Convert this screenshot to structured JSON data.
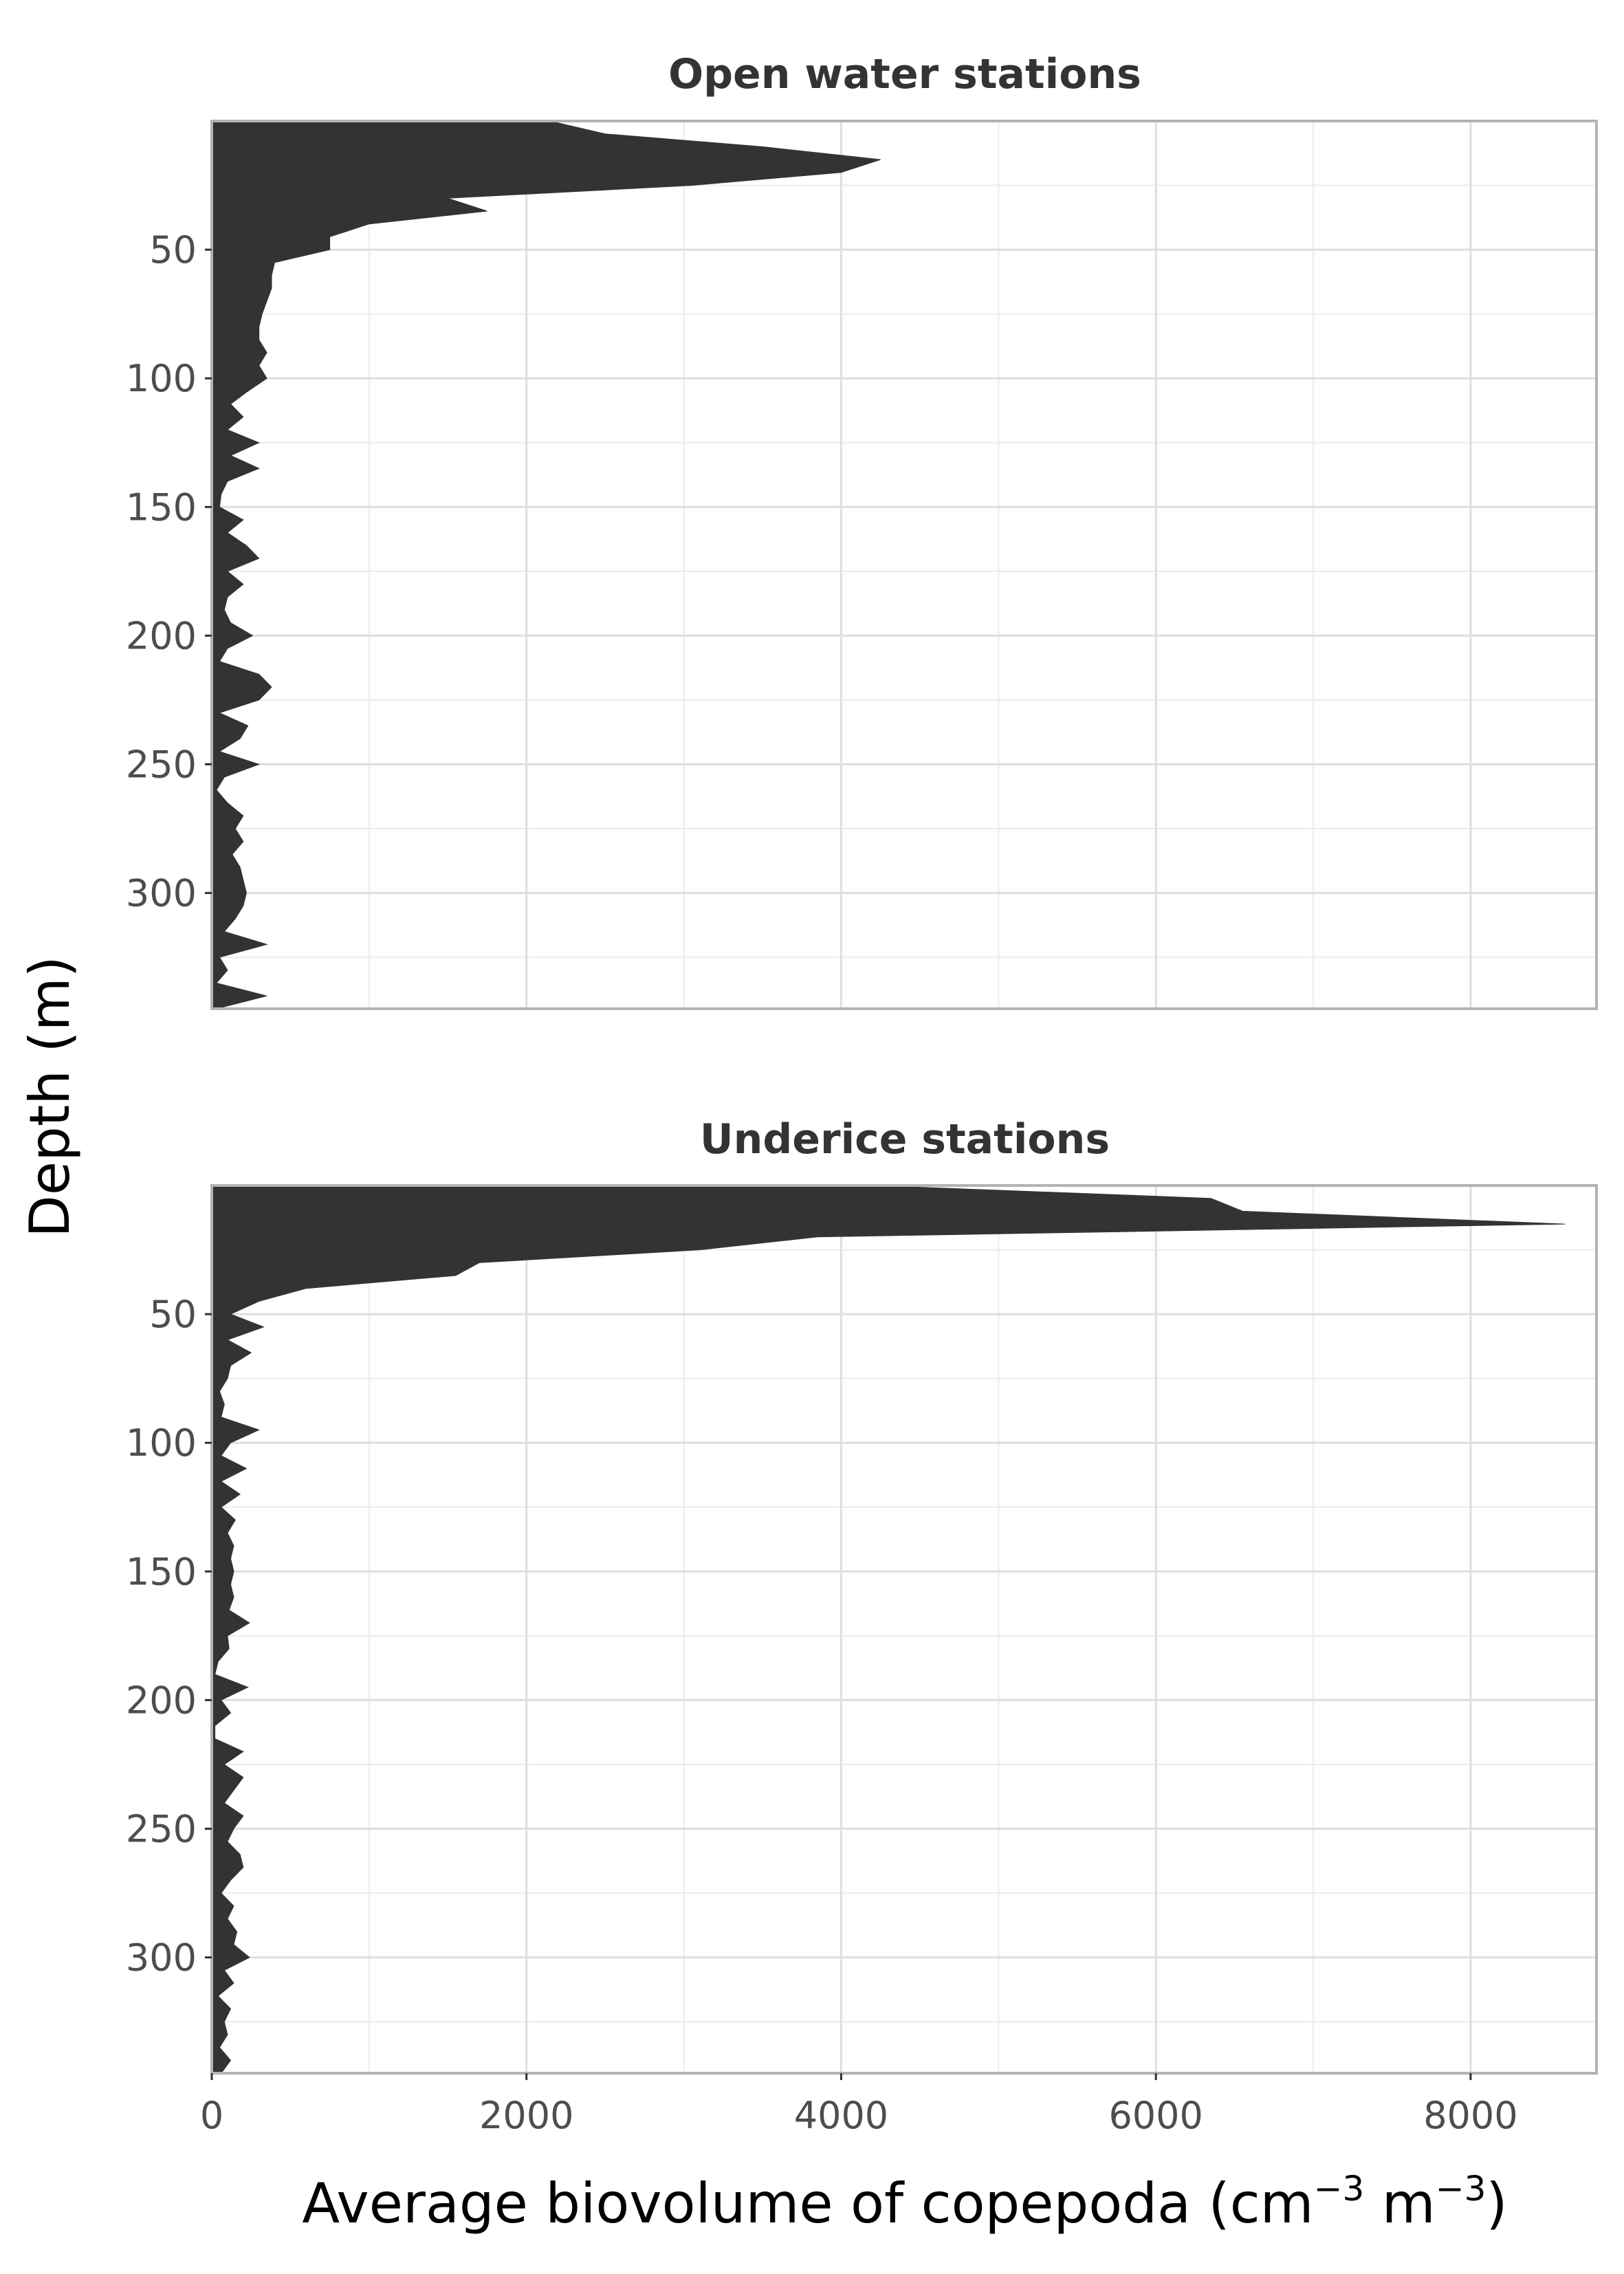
{
  "chart_data": [
    {
      "type": "area",
      "title": "Open water stations",
      "xlim": [
        0,
        8800
      ],
      "ylim": [
        0,
        345
      ],
      "y_reversed": true,
      "x_ticks": [
        0,
        2000,
        4000,
        6000,
        8000
      ],
      "y_ticks": [
        50,
        100,
        150,
        200,
        250,
        300
      ],
      "x_tick_labels_shown": false,
      "grid": true,
      "profile": {
        "depth": [
          0,
          5,
          10,
          15,
          20,
          25,
          30,
          35,
          40,
          45,
          50,
          55,
          60,
          65,
          70,
          75,
          80,
          85,
          90,
          95,
          100,
          105,
          110,
          115,
          120,
          125,
          130,
          135,
          140,
          145,
          150,
          155,
          160,
          165,
          170,
          175,
          180,
          185,
          190,
          195,
          200,
          205,
          210,
          215,
          220,
          225,
          230,
          235,
          240,
          245,
          250,
          255,
          260,
          265,
          270,
          275,
          280,
          285,
          290,
          295,
          300,
          305,
          310,
          315,
          320,
          325,
          330,
          335,
          340,
          345
        ],
        "biovolume": [
          2150,
          2500,
          3500,
          4250,
          4000,
          3050,
          1500,
          1750,
          1000,
          750,
          750,
          400,
          380,
          380,
          350,
          320,
          300,
          300,
          350,
          300,
          350,
          230,
          120,
          200,
          100,
          300,
          120,
          300,
          100,
          60,
          50,
          200,
          100,
          220,
          300,
          100,
          200,
          100,
          80,
          120,
          260,
          100,
          50,
          300,
          380,
          300,
          50,
          230,
          180,
          50,
          300,
          80,
          30,
          100,
          200,
          150,
          200,
          130,
          180,
          200,
          220,
          200,
          150,
          80,
          350,
          50,
          100,
          30,
          350,
          30
        ]
      }
    },
    {
      "type": "area",
      "title": "Underice stations",
      "xlabel": "Average biovolume of copepoda (cm⁻³ m⁻³)",
      "ylabel": "Depth (m)",
      "xlim": [
        0,
        8800
      ],
      "ylim": [
        0,
        345
      ],
      "y_reversed": true,
      "x_ticks": [
        0,
        2000,
        4000,
        6000,
        8000
      ],
      "y_ticks": [
        50,
        100,
        150,
        200,
        250,
        300
      ],
      "grid": true,
      "profile": {
        "depth": [
          0,
          5,
          10,
          15,
          20,
          25,
          30,
          35,
          40,
          45,
          50,
          55,
          60,
          65,
          70,
          75,
          80,
          85,
          90,
          95,
          100,
          105,
          110,
          115,
          120,
          125,
          130,
          135,
          140,
          145,
          150,
          155,
          160,
          165,
          170,
          175,
          180,
          185,
          190,
          195,
          200,
          205,
          210,
          215,
          220,
          225,
          230,
          235,
          240,
          245,
          250,
          255,
          260,
          265,
          270,
          275,
          280,
          285,
          290,
          295,
          300,
          305,
          310,
          315,
          320,
          325,
          330,
          335,
          340,
          345
        ],
        "biovolume": [
          4200,
          6350,
          6550,
          8600,
          3850,
          3100,
          1700,
          1550,
          600,
          300,
          120,
          330,
          100,
          250,
          120,
          100,
          50,
          80,
          60,
          300,
          120,
          60,
          220,
          60,
          180,
          60,
          150,
          100,
          140,
          120,
          140,
          120,
          140,
          110,
          240,
          100,
          110,
          40,
          20,
          230,
          60,
          120,
          20,
          20,
          200,
          80,
          200,
          140,
          80,
          200,
          140,
          100,
          180,
          200,
          120,
          60,
          140,
          100,
          160,
          140,
          240,
          80,
          140,
          40,
          120,
          80,
          100,
          50,
          120,
          60
        ]
      }
    }
  ],
  "labels": {
    "panel_top_title": "Open water stations",
    "panel_bottom_title": "Underice stations",
    "y_axis_title": "Depth (m)",
    "x_axis_title_main": "Average biovolume of copepoda (cm",
    "x_axis_title_sup1": "−3",
    "x_axis_title_mid": " m",
    "x_axis_title_sup2": "−3",
    "x_axis_title_end": ")"
  },
  "colors": {
    "fill": "#333333",
    "grid": "#dedede",
    "frame": "#b3b3b3"
  }
}
